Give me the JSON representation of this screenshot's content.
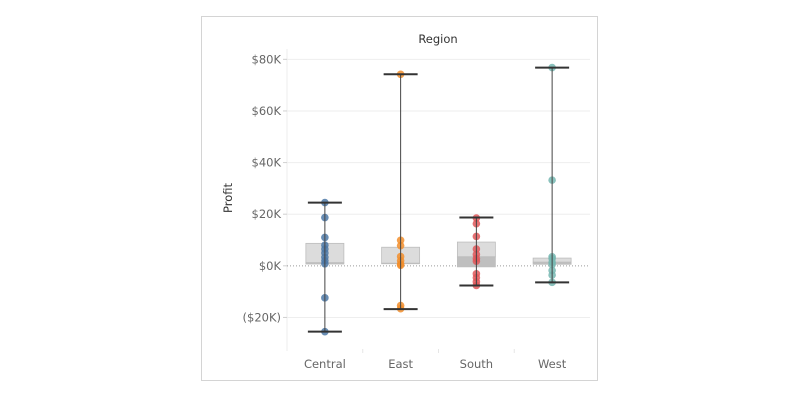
{
  "chart_data": {
    "type": "boxplot",
    "title": "",
    "column_header": "Region",
    "ylabel": "Profit",
    "ylim": [
      -33000,
      84000
    ],
    "y_ticks": [
      {
        "value": 80000,
        "label": "$80K"
      },
      {
        "value": 60000,
        "label": "$60K"
      },
      {
        "value": 40000,
        "label": "$40K"
      },
      {
        "value": 20000,
        "label": "$20K"
      },
      {
        "value": 0,
        "label": "$0K"
      },
      {
        "value": -20000,
        "label": "($20K)"
      }
    ],
    "categories": [
      "Central",
      "East",
      "South",
      "West"
    ],
    "series": [
      {
        "name": "Central",
        "color": "#4e79a7",
        "whisker_low": -25500,
        "q1": 700,
        "median": 1200,
        "q3": 8700,
        "whisker_high": 24500,
        "points": [
          24500,
          18700,
          11000,
          8000,
          6500,
          5000,
          3300,
          2000,
          800,
          -12400,
          -25500
        ]
      },
      {
        "name": "East",
        "color": "#f28e2b",
        "whisker_low": -16800,
        "q1": 800,
        "median": 1000,
        "q3": 7200,
        "whisker_high": 74200,
        "points": [
          74200,
          9900,
          7800,
          3600,
          2000,
          600,
          200,
          -15400,
          -16600
        ]
      },
      {
        "name": "South",
        "color": "#e15759",
        "whisker_low": -7600,
        "q1": -400,
        "median": 3500,
        "q3": 9200,
        "whisker_high": 18700,
        "points": [
          18500,
          16300,
          11400,
          6500,
          4400,
          2800,
          1800,
          -3100,
          -4600,
          -6200,
          -7600
        ]
      },
      {
        "name": "West",
        "color": "#76b7b2",
        "whisker_low": -6400,
        "q1": 600,
        "median": 1400,
        "q3": 3000,
        "whisker_high": 76800,
        "points": [
          76800,
          33200,
          3500,
          2800,
          1400,
          500,
          -1800,
          -3600,
          -6400
        ]
      }
    ],
    "grid": true,
    "zero_line": "dotted"
  }
}
